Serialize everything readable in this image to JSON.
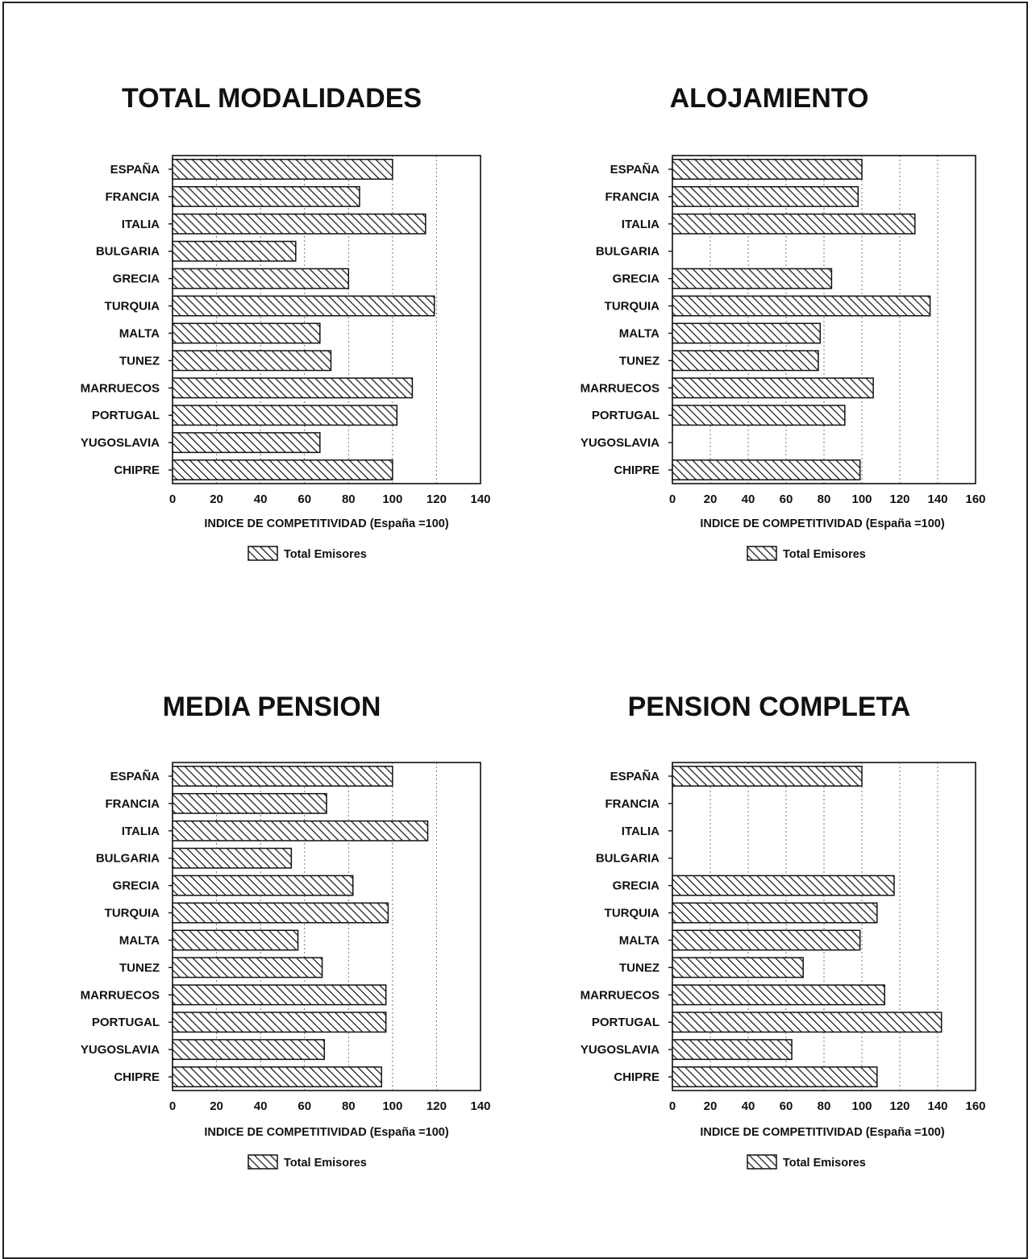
{
  "chart_data": [
    {
      "type": "bar",
      "title": "TOTAL MODALIDADES",
      "categories": [
        "ESPAÑA",
        "FRANCIA",
        "ITALIA",
        "BULGARIA",
        "GRECIA",
        "TURQUIA",
        "MALTA",
        "TUNEZ",
        "MARRUECOS",
        "PORTUGAL",
        "YUGOSLAVIA",
        "CHIPRE"
      ],
      "series": [
        {
          "name": "Total Emisores",
          "values": [
            100,
            85,
            115,
            56,
            80,
            119,
            67,
            72,
            109,
            102,
            67,
            100
          ]
        }
      ],
      "xlim": [
        0,
        140
      ],
      "xticks": [
        "0",
        "20",
        "40",
        "60",
        "80",
        "100",
        "120",
        "140"
      ],
      "xlabel": "INDICE DE COMPETITIVIDAD (España =100)",
      "legend": [
        "Total Emisores"
      ],
      "grid": true,
      "orientation": "horizontal"
    },
    {
      "type": "bar",
      "title": "ALOJAMIENTO",
      "categories": [
        "ESPAÑA",
        "FRANCIA",
        "ITALIA",
        "BULGARIA",
        "GRECIA",
        "TURQUIA",
        "MALTA",
        "TUNEZ",
        "MARRUECOS",
        "PORTUGAL",
        "YUGOSLAVIA",
        "CHIPRE"
      ],
      "series": [
        {
          "name": "Total Emisores",
          "values": [
            100,
            98,
            128,
            null,
            84,
            136,
            78,
            77,
            106,
            91,
            null,
            99
          ]
        }
      ],
      "xlim": [
        0,
        160
      ],
      "xticks": [
        "0",
        "20",
        "40",
        "60",
        "80",
        "100",
        "120",
        "140",
        "160"
      ],
      "xlabel": "INDICE DE COMPETITIVIDAD (España =100)",
      "legend": [
        "Total Emisores"
      ],
      "grid": true,
      "orientation": "horizontal"
    },
    {
      "type": "bar",
      "title": "MEDIA PENSION",
      "categories": [
        "ESPAÑA",
        "FRANCIA",
        "ITALIA",
        "BULGARIA",
        "GRECIA",
        "TURQUIA",
        "MALTA",
        "TUNEZ",
        "MARRUECOS",
        "PORTUGAL",
        "YUGOSLAVIA",
        "CHIPRE"
      ],
      "series": [
        {
          "name": "Total Emisores",
          "values": [
            100,
            70,
            116,
            54,
            82,
            98,
            57,
            68,
            97,
            97,
            69,
            95
          ]
        }
      ],
      "xlim": [
        0,
        140
      ],
      "xticks": [
        "0",
        "20",
        "40",
        "60",
        "80",
        "100",
        "120",
        "140"
      ],
      "xlabel": "INDICE DE COMPETITIVIDAD (España =100)",
      "legend": [
        "Total Emisores"
      ],
      "grid": true,
      "orientation": "horizontal"
    },
    {
      "type": "bar",
      "title": "PENSION COMPLETA",
      "categories": [
        "ESPAÑA",
        "FRANCIA",
        "ITALIA",
        "BULGARIA",
        "GRECIA",
        "TURQUIA",
        "MALTA",
        "TUNEZ",
        "MARRUECOS",
        "PORTUGAL",
        "YUGOSLAVIA",
        "CHIPRE"
      ],
      "series": [
        {
          "name": "Total Emisores",
          "values": [
            100,
            null,
            null,
            null,
            117,
            108,
            99,
            69,
            112,
            142,
            63,
            108
          ]
        }
      ],
      "xlim": [
        0,
        160
      ],
      "xticks": [
        "0",
        "20",
        "40",
        "60",
        "80",
        "100",
        "120",
        "140",
        "160"
      ],
      "xlabel": "INDICE DE COMPETITIVIDAD (España =100)",
      "legend": [
        "Total Emisores"
      ],
      "grid": true,
      "orientation": "horizontal"
    }
  ]
}
